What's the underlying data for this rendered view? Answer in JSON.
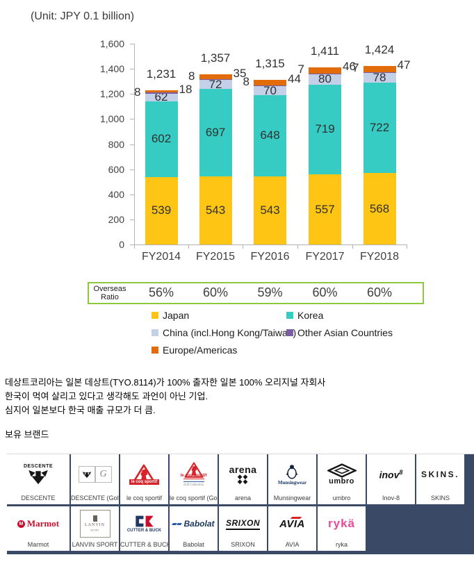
{
  "title": "(Unit: JPY 0.1  billion)",
  "chart_data": {
    "type": "bar",
    "stacked": true,
    "title": "(Unit: JPY 0.1  billion)",
    "categories": [
      "FY2014",
      "FY2015",
      "FY2016",
      "FY2017",
      "FY2018"
    ],
    "series": [
      {
        "name": "Japan",
        "color": "#FFC514",
        "values": [
          539,
          543,
          543,
          557,
          568
        ]
      },
      {
        "name": "Korea",
        "color": "#36CCC3",
        "values": [
          602,
          697,
          648,
          719,
          722
        ]
      },
      {
        "name": "China (incl.Hong Kong/Taiwan)",
        "color": "#C4CFE8",
        "values": [
          62,
          72,
          70,
          80,
          78
        ]
      },
      {
        "name": "Other Asian Countries",
        "color": "#7A5EA4",
        "values": [
          8,
          8,
          8,
          7,
          7
        ]
      },
      {
        "name": "Europe/Americas",
        "color": "#E26B0A",
        "values": [
          18,
          35,
          44,
          46,
          47
        ]
      }
    ],
    "totals": [
      "1,231",
      "1,357",
      "1,315",
      "1,411",
      "1,424"
    ],
    "xlabel": "",
    "ylabel": "",
    "ylim": [
      0,
      1600
    ],
    "y_ticks": [
      "1,600",
      "1,400",
      "1,200",
      "1,000",
      "800",
      "600",
      "400",
      "200",
      "0"
    ],
    "grid": false,
    "legend_position": "bottom"
  },
  "overseas_ratio": {
    "label": [
      "Overseas",
      "Ratio"
    ],
    "values": [
      "56%",
      "60%",
      "59%",
      "60%",
      "60%"
    ],
    "border_color": "#8CC83C"
  },
  "legend": [
    {
      "label": "Japan",
      "color": "#FFC514"
    },
    {
      "label": "Korea",
      "color": "#36CCC3"
    },
    {
      "label": "China (incl.Hong Kong/Taiwan)",
      "color": "#C4CFE8"
    },
    {
      "label": "Other Asian Countries",
      "color": "#7A5EA4"
    },
    {
      "label": "Europe/Americas",
      "color": "#E26B0A"
    }
  ],
  "notes": {
    "line1": "데상트코리아는 일본 데상트(TYO.8114)가 100% 출자한 일본 100% 오리지널 자회사",
    "line2": "한국이 먹여 살리고 있다고 생각해도 과언이 아닌 기업.",
    "line3": "심지어 일본보다 한국 매출 규모가 더 큼."
  },
  "brands_heading": "보유 브랜드",
  "brands": {
    "row1": [
      {
        "id": "descente",
        "logo_text": "DESCENTE",
        "label": "DESCENTE"
      },
      {
        "id": "descente-golf",
        "logo_text": "DESCENTE",
        "logo_text2": "G",
        "label": "DESCENTE (Golf)"
      },
      {
        "id": "lecoq",
        "logo_text": "le coq sportif",
        "label": "le coq sportif"
      },
      {
        "id": "lecoq-golf",
        "logo_text": "le coq sportif",
        "logo_text2": "Golf Collection",
        "label": "le coq sportif (Golf)"
      },
      {
        "id": "arena",
        "logo_text": "arena",
        "label": "arena"
      },
      {
        "id": "munsingwear",
        "logo_text": "Munsingwear",
        "label": "Munsingwear"
      },
      {
        "id": "umbro",
        "logo_text": "umbro",
        "label": "umbro"
      },
      {
        "id": "inov8",
        "logo_text": "inov",
        "logo_text2": "8",
        "label": "Inov-8"
      },
      {
        "id": "skins",
        "logo_text": "SKINS.",
        "label": "SKINS"
      }
    ],
    "row2": [
      {
        "id": "marmot",
        "logo_text": "Marmot",
        "logo_text2": "M",
        "label": "Marmot"
      },
      {
        "id": "lanvin",
        "logo_text": "LANVIN",
        "logo_text2": "SPORT",
        "label": "LANVIN SPORT"
      },
      {
        "id": "cutterbuck",
        "logo_text": "CUTTER & BUCK",
        "label": "CUTTER & BUCK"
      },
      {
        "id": "babolat",
        "logo_text": "Babolat",
        "label": "Babolat"
      },
      {
        "id": "srixon",
        "logo_text": "SRIXON",
        "label": "SRIXON"
      },
      {
        "id": "avia",
        "logo_text": "AVIA",
        "label": "AVIA"
      },
      {
        "id": "ryka",
        "logo_text": "rykä",
        "label": "ryka"
      }
    ]
  }
}
